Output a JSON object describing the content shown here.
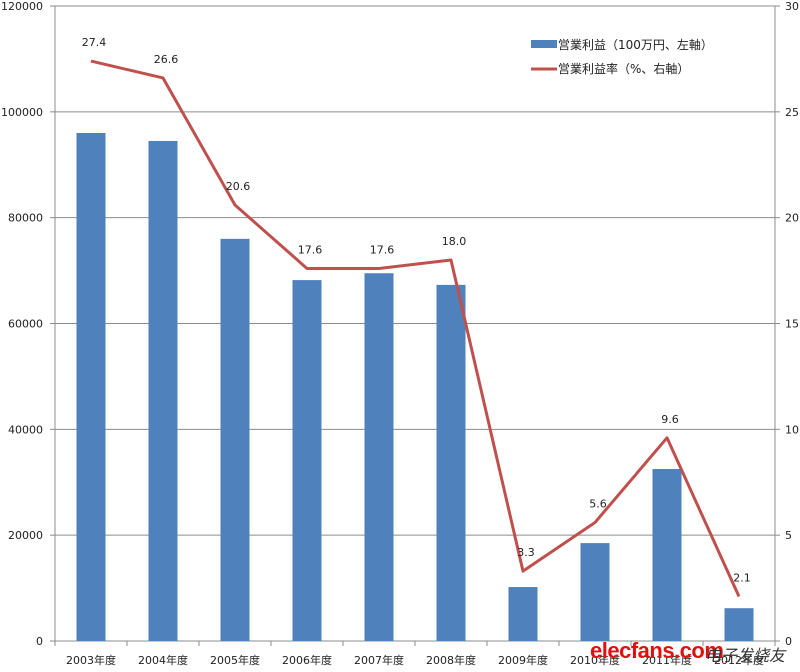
{
  "chart_data": {
    "type": "bar+line",
    "title": "",
    "categories": [
      "2003年度",
      "2004年度",
      "2005年度",
      "2006年度",
      "2007年度",
      "2008年度",
      "2009年度",
      "2010年度",
      "2011年度",
      "2012年度"
    ],
    "series": [
      {
        "name": "営業利益（100万円、左軸）",
        "type": "bar",
        "axis": "left",
        "color": "#4f81bd",
        "values": [
          96000,
          94500,
          76000,
          68200,
          69500,
          67300,
          10200,
          18500,
          32500,
          6200
        ]
      },
      {
        "name": "営業利益率（%、右軸）",
        "type": "line",
        "axis": "right",
        "color": "#c0504d",
        "values": [
          27.4,
          26.6,
          20.6,
          17.6,
          17.6,
          18.0,
          3.3,
          5.6,
          9.6,
          2.1
        ],
        "data_labels": [
          "27.4",
          "26.6",
          "20.6",
          "17.6",
          "17.6",
          "18.0",
          "3.3",
          "5.6",
          "9.6",
          "2.1"
        ]
      }
    ],
    "y_left": {
      "ylim": [
        0,
        120000
      ],
      "ticks": [
        "0",
        "20000",
        "40000",
        "60000",
        "80000",
        "100000",
        "120000"
      ]
    },
    "y_right": {
      "ylim": [
        0,
        30
      ],
      "ticks": [
        "0",
        "5",
        "10",
        "15",
        "20",
        "25",
        "30"
      ]
    },
    "xlabel": "",
    "ylabel": "",
    "grid": true,
    "legend_position": "top-right inside"
  },
  "legend": {
    "bar_label": "営業利益（100万円、左軸）",
    "line_label": "営業利益率（%、右軸）"
  },
  "watermark": {
    "text": "elecfans.com",
    "text2": "电子发烧友"
  }
}
